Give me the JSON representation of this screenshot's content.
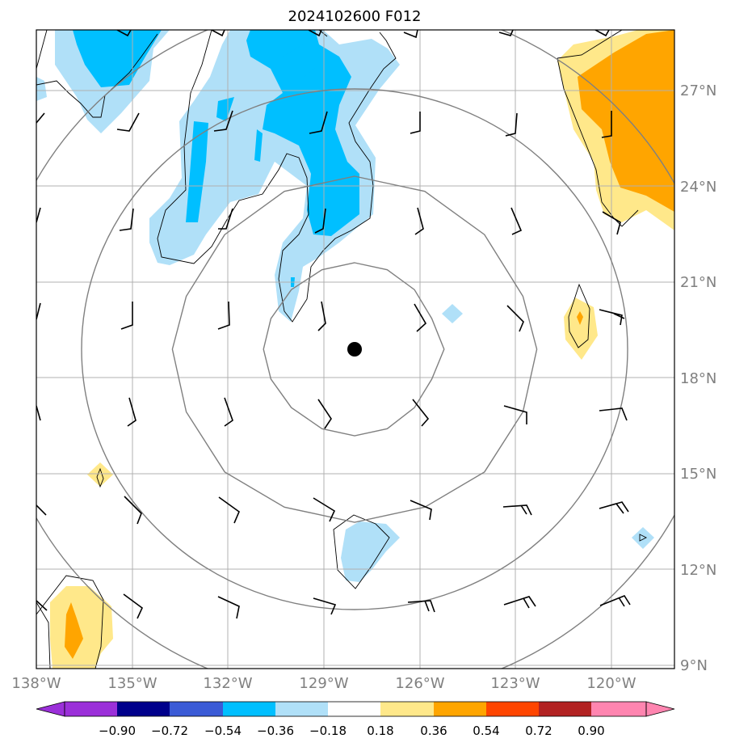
{
  "title": "2024102600 F012",
  "map": {
    "lon_range": [
      -138,
      -118
    ],
    "lat_range": [
      9,
      29
    ],
    "lon_ticks": [
      "138°W",
      "135°W",
      "132°W",
      "129°W",
      "126°W",
      "123°W",
      "120°W"
    ],
    "lat_ticks": [
      "9°N",
      "12°N",
      "15°N",
      "18°N",
      "21°N",
      "24°N",
      "27°N"
    ],
    "grid": true,
    "center": {
      "lon": -128.0,
      "lat": 18.9,
      "marker": "filled-circle"
    },
    "range_rings_count": 4
  },
  "colorbar": {
    "orientation": "horizontal",
    "extend": "both",
    "tick_labels": [
      "−0.90",
      "−0.72",
      "−0.54",
      "−0.36",
      "−0.18",
      "0.18",
      "0.36",
      "0.54",
      "0.72",
      "0.90"
    ],
    "colors": [
      "#9b30d9",
      "#00008b",
      "#3b5bd6",
      "#00bfff",
      "#b0e0f8",
      "#ffffff",
      "#ffe88a",
      "#ffa500",
      "#ff4500",
      "#b22222",
      "#ff85b0"
    ]
  },
  "colors": {
    "light_blue": "#b0e0f8",
    "blue": "#00bfff",
    "light_yellow": "#ffe88a",
    "orange": "#ffa500",
    "grid": "#b0b0b0",
    "rings": "#808080"
  }
}
